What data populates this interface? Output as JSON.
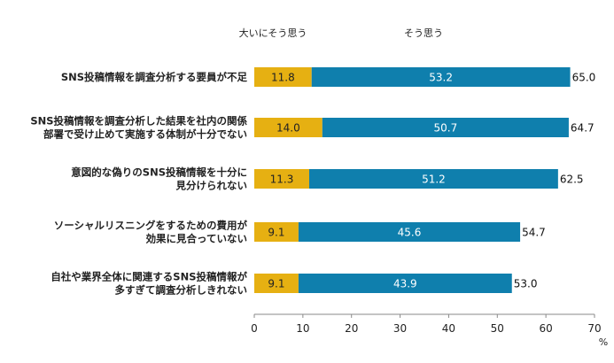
{
  "chart_data": {
    "type": "bar",
    "orientation": "horizontal",
    "stacked": true,
    "categories": [
      [
        "SNS投稿情報を調査分析する要員が不足"
      ],
      [
        "SNS投稿情報を調査分析した結果を社内の関係",
        "部署で受け止めて実施する体制が十分でない"
      ],
      [
        "意図的な偽りのSNS投稿情報を十分に",
        "見分けられない"
      ],
      [
        "ソーシャルリスニングをするための費用が",
        "効果に見合っていない"
      ],
      [
        "自社や業界全体に関連するSNS投稿情報が",
        "多すぎて調査分析しきれない"
      ]
    ],
    "series": [
      {
        "name": "大いにそう思う",
        "color": "#e6b012",
        "values": [
          11.8,
          14.0,
          11.3,
          9.1,
          9.1
        ],
        "labels": [
          "11.8",
          "14.0",
          "11.3",
          "9.1",
          "9.1"
        ]
      },
      {
        "name": "そう思う",
        "color": "#0f7fad",
        "values": [
          53.2,
          50.7,
          51.2,
          45.6,
          43.9
        ],
        "labels": [
          "53.2",
          "50.7",
          "51.2",
          "45.6",
          "43.9"
        ]
      }
    ],
    "totals": [
      "65.0",
      "64.7",
      "62.5",
      "54.7",
      "53.0"
    ],
    "xlim": [
      0,
      70
    ],
    "xticks": [
      0,
      10,
      20,
      30,
      40,
      50,
      60,
      70
    ],
    "unit": "%",
    "grid": false,
    "legend_placement": "top"
  }
}
